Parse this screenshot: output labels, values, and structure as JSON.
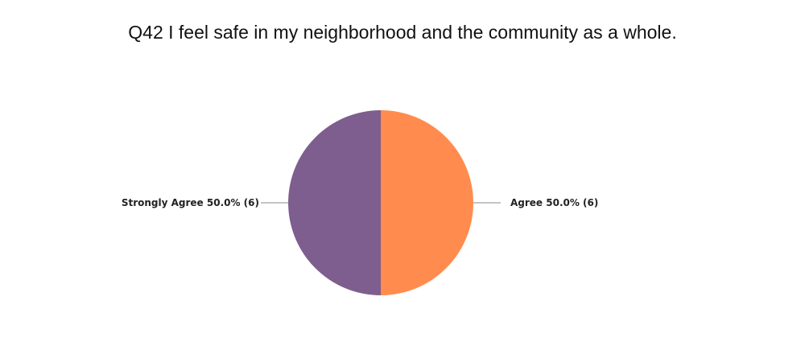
{
  "chart_data": {
    "type": "pie",
    "title": "Q42 I feel safe in my neighborhood and the community as a whole.",
    "slices": [
      {
        "label": "Agree",
        "percent": 50.0,
        "count": 6,
        "display": "Agree 50.0% (6)",
        "color": "#FF8C4E"
      },
      {
        "label": "Strongly Agree",
        "percent": 50.0,
        "count": 6,
        "display": "Strongly Agree 50.0% (6)",
        "color": "#7D5E8E"
      }
    ],
    "start_angle": "12 o'clock",
    "direction": "clockwise",
    "legend": "none",
    "label_style": "outside labels with leader lines"
  }
}
